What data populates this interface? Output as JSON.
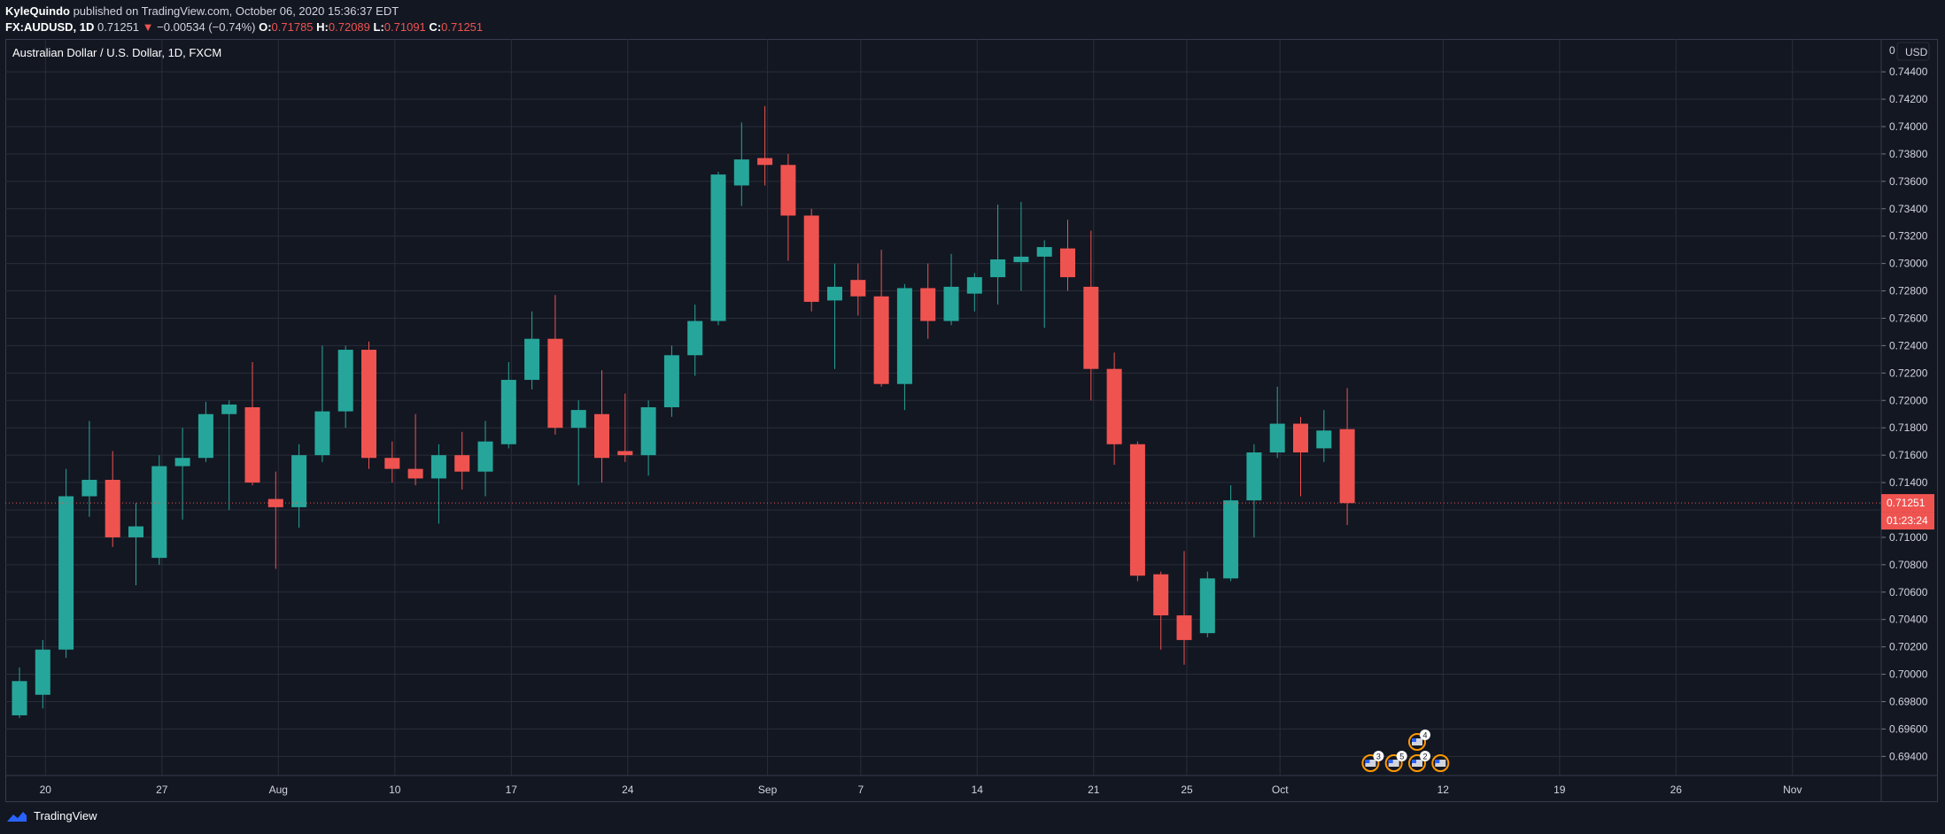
{
  "header": {
    "author": "KyleQuindo",
    "published_text": "published on TradingView.com, October 06, 2020 15:36:37 EDT",
    "symbol": "FX:AUDUSD, 1D",
    "last": "0.71251",
    "change": "−0.00534 (−0.74%)",
    "o_label": "O:",
    "o_value": "0.71785",
    "h_label": "H:",
    "h_value": "0.72089",
    "l_label": "L:",
    "l_value": "0.71091",
    "c_label": "C:",
    "c_value": "0.71251"
  },
  "footer": {
    "brand": "TradingView",
    "icon": "tradingview-cloud-icon"
  },
  "colors": {
    "bull": "#26a69a",
    "bear": "#ef5350",
    "bg": "#131722",
    "grid": "#2a2e39",
    "text": "#d1d4dc"
  },
  "chart_data": {
    "type": "candlestick",
    "title": "Australian Dollar / U.S. Dollar, 1D, FXCM",
    "currency": "USD",
    "ylim": [
      0.6926,
      0.7464
    ],
    "y_ticks": [
      "0.69400",
      "0.69600",
      "0.69800",
      "0.70000",
      "0.70200",
      "0.70400",
      "0.70600",
      "0.70800",
      "0.71000",
      "0.71200",
      "0.71400",
      "0.71600",
      "0.71800",
      "0.72000",
      "0.72200",
      "0.72400",
      "0.72600",
      "0.72800",
      "0.73000",
      "0.73200",
      "0.73400",
      "0.73600",
      "0.73800",
      "0.74000",
      "0.74200",
      "0.74400"
    ],
    "top_tick_partial": "0",
    "x_ticks": [
      {
        "label": "20",
        "index": 1
      },
      {
        "label": "27",
        "index": 6
      },
      {
        "label": "Aug",
        "index": 11
      },
      {
        "label": "10",
        "index": 16
      },
      {
        "label": "17",
        "index": 21
      },
      {
        "label": "24",
        "index": 26
      },
      {
        "label": "Sep",
        "index": 32
      },
      {
        "label": "7",
        "index": 36
      },
      {
        "label": "14",
        "index": 41
      },
      {
        "label": "21",
        "index": 46
      },
      {
        "label": "25",
        "index": 50
      },
      {
        "label": "Oct",
        "index": 54
      },
      {
        "label": "12",
        "index": 61
      },
      {
        "label": "19",
        "index": 66
      },
      {
        "label": "26",
        "index": 71
      },
      {
        "label": "Nov",
        "index": 76
      }
    ],
    "grid": true,
    "last_price_label": "0.71251",
    "countdown_label": "01:23:24",
    "candles": [
      {
        "o": 0.697,
        "h": 0.7005,
        "l": 0.6968,
        "c": 0.6995
      },
      {
        "o": 0.6985,
        "h": 0.7025,
        "l": 0.6975,
        "c": 0.7018
      },
      {
        "o": 0.7018,
        "h": 0.715,
        "l": 0.7012,
        "c": 0.713
      },
      {
        "o": 0.713,
        "h": 0.7185,
        "l": 0.7115,
        "c": 0.7142
      },
      {
        "o": 0.7142,
        "h": 0.7163,
        "l": 0.7093,
        "c": 0.71
      },
      {
        "o": 0.71,
        "h": 0.7125,
        "l": 0.7065,
        "c": 0.7108
      },
      {
        "o": 0.7085,
        "h": 0.716,
        "l": 0.708,
        "c": 0.7152
      },
      {
        "o": 0.7152,
        "h": 0.718,
        "l": 0.7113,
        "c": 0.7158
      },
      {
        "o": 0.7158,
        "h": 0.7199,
        "l": 0.7155,
        "c": 0.719
      },
      {
        "o": 0.719,
        "h": 0.72,
        "l": 0.712,
        "c": 0.7197
      },
      {
        "o": 0.7195,
        "h": 0.7228,
        "l": 0.7138,
        "c": 0.714
      },
      {
        "o": 0.7128,
        "h": 0.7148,
        "l": 0.7077,
        "c": 0.7122
      },
      {
        "o": 0.7122,
        "h": 0.7168,
        "l": 0.7107,
        "c": 0.716
      },
      {
        "o": 0.716,
        "h": 0.724,
        "l": 0.7155,
        "c": 0.7192
      },
      {
        "o": 0.7192,
        "h": 0.724,
        "l": 0.718,
        "c": 0.7237
      },
      {
        "o": 0.7237,
        "h": 0.7243,
        "l": 0.715,
        "c": 0.7158
      },
      {
        "o": 0.7158,
        "h": 0.717,
        "l": 0.714,
        "c": 0.715
      },
      {
        "o": 0.715,
        "h": 0.719,
        "l": 0.7138,
        "c": 0.7143
      },
      {
        "o": 0.7143,
        "h": 0.7168,
        "l": 0.711,
        "c": 0.716
      },
      {
        "o": 0.716,
        "h": 0.7177,
        "l": 0.7135,
        "c": 0.7148
      },
      {
        "o": 0.7148,
        "h": 0.7185,
        "l": 0.713,
        "c": 0.717
      },
      {
        "o": 0.7168,
        "h": 0.7228,
        "l": 0.7165,
        "c": 0.7215
      },
      {
        "o": 0.7215,
        "h": 0.7265,
        "l": 0.7208,
        "c": 0.7245
      },
      {
        "o": 0.7245,
        "h": 0.7277,
        "l": 0.7175,
        "c": 0.718
      },
      {
        "o": 0.718,
        "h": 0.72,
        "l": 0.7138,
        "c": 0.7193
      },
      {
        "o": 0.719,
        "h": 0.7222,
        "l": 0.714,
        "c": 0.7158
      },
      {
        "o": 0.7163,
        "h": 0.7205,
        "l": 0.7155,
        "c": 0.716
      },
      {
        "o": 0.716,
        "h": 0.72,
        "l": 0.7145,
        "c": 0.7195
      },
      {
        "o": 0.7195,
        "h": 0.724,
        "l": 0.7188,
        "c": 0.7233
      },
      {
        "o": 0.7233,
        "h": 0.727,
        "l": 0.7218,
        "c": 0.7258
      },
      {
        "o": 0.7258,
        "h": 0.7367,
        "l": 0.7255,
        "c": 0.7365
      },
      {
        "o": 0.7357,
        "h": 0.7403,
        "l": 0.7342,
        "c": 0.7376
      },
      {
        "o": 0.7377,
        "h": 0.7415,
        "l": 0.7357,
        "c": 0.7372
      },
      {
        "o": 0.7372,
        "h": 0.738,
        "l": 0.7302,
        "c": 0.7335
      },
      {
        "o": 0.7335,
        "h": 0.734,
        "l": 0.7265,
        "c": 0.7272
      },
      {
        "o": 0.7273,
        "h": 0.73,
        "l": 0.7223,
        "c": 0.7283
      },
      {
        "o": 0.7288,
        "h": 0.73,
        "l": 0.7262,
        "c": 0.7276
      },
      {
        "o": 0.7276,
        "h": 0.731,
        "l": 0.721,
        "c": 0.7212
      },
      {
        "o": 0.7212,
        "h": 0.7285,
        "l": 0.7193,
        "c": 0.7282
      },
      {
        "o": 0.7282,
        "h": 0.73,
        "l": 0.7245,
        "c": 0.7258
      },
      {
        "o": 0.7258,
        "h": 0.7307,
        "l": 0.7255,
        "c": 0.7283
      },
      {
        "o": 0.7278,
        "h": 0.7293,
        "l": 0.7265,
        "c": 0.729
      },
      {
        "o": 0.729,
        "h": 0.7343,
        "l": 0.727,
        "c": 0.7303
      },
      {
        "o": 0.7301,
        "h": 0.7345,
        "l": 0.728,
        "c": 0.7305
      },
      {
        "o": 0.7305,
        "h": 0.7317,
        "l": 0.7253,
        "c": 0.7312
      },
      {
        "o": 0.7311,
        "h": 0.7332,
        "l": 0.728,
        "c": 0.729
      },
      {
        "o": 0.7283,
        "h": 0.7324,
        "l": 0.72,
        "c": 0.7223
      },
      {
        "o": 0.7223,
        "h": 0.7235,
        "l": 0.7153,
        "c": 0.7168
      },
      {
        "o": 0.7168,
        "h": 0.717,
        "l": 0.7068,
        "c": 0.7072
      },
      {
        "o": 0.7073,
        "h": 0.7075,
        "l": 0.7018,
        "c": 0.7043
      },
      {
        "o": 0.7043,
        "h": 0.709,
        "l": 0.7007,
        "c": 0.7025
      },
      {
        "o": 0.703,
        "h": 0.7075,
        "l": 0.7027,
        "c": 0.707
      },
      {
        "o": 0.707,
        "h": 0.7138,
        "l": 0.7068,
        "c": 0.7127
      },
      {
        "o": 0.7127,
        "h": 0.7168,
        "l": 0.71,
        "c": 0.7162
      },
      {
        "o": 0.7162,
        "h": 0.721,
        "l": 0.7158,
        "c": 0.7183
      },
      {
        "o": 0.7183,
        "h": 0.7188,
        "l": 0.713,
        "c": 0.7162
      },
      {
        "o": 0.7165,
        "h": 0.7193,
        "l": 0.7155,
        "c": 0.7178
      },
      {
        "o": 0.7179,
        "h": 0.7209,
        "l": 0.7109,
        "c": 0.7125
      }
    ],
    "event_markers": [
      {
        "index": 58,
        "badge": "3",
        "row": 0
      },
      {
        "index": 59,
        "badge": "5",
        "row": 0
      },
      {
        "index": 60,
        "badge": "4",
        "row": 1
      },
      {
        "index": 60,
        "badge": "2",
        "row": 0
      },
      {
        "index": 61,
        "badge": "",
        "row": 0
      }
    ]
  }
}
